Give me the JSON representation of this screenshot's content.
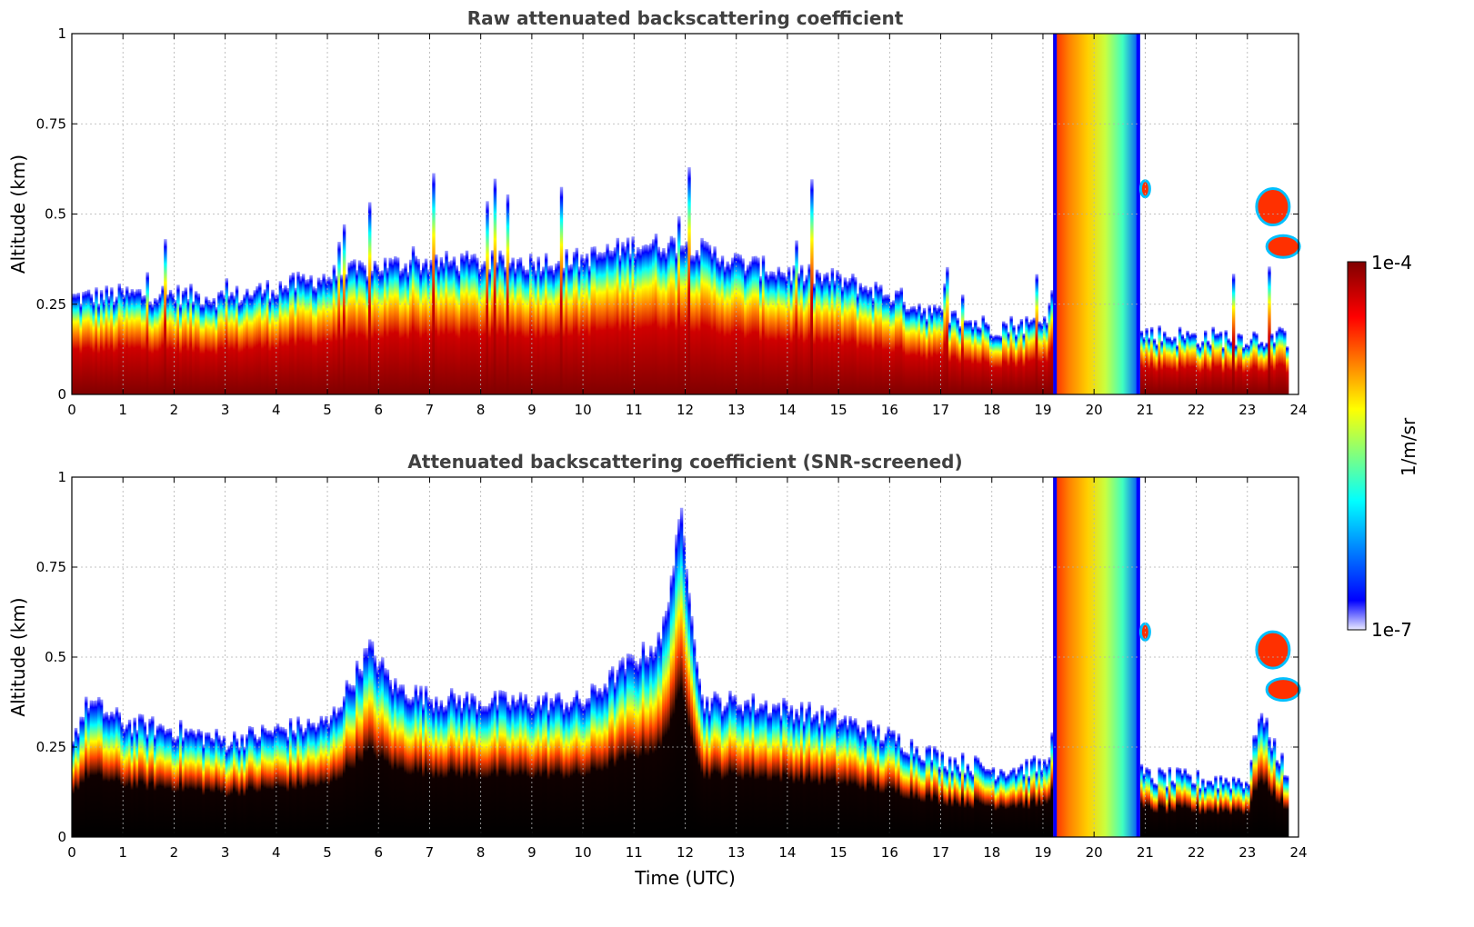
{
  "chart_data": [
    {
      "type": "heatmap",
      "title": "Raw attenuated backscattering coefficient",
      "xlabel": "",
      "ylabel": "Altitude (km)",
      "xlim": [
        0,
        24
      ],
      "ylim": [
        0,
        1
      ],
      "x_ticks": [
        "0",
        "1",
        "2",
        "3",
        "4",
        "5",
        "6",
        "7",
        "8",
        "9",
        "10",
        "11",
        "12",
        "13",
        "14",
        "15",
        "16",
        "17",
        "18",
        "19",
        "20",
        "21",
        "22",
        "23",
        "24"
      ],
      "y_ticks": [
        "0",
        "0.25",
        "0.5",
        "0.75",
        "1"
      ],
      "grid": true,
      "screened": false,
      "boundary_layer_top_km": [
        {
          "t": 0,
          "h": 0.27
        },
        {
          "t": 1,
          "h": 0.28
        },
        {
          "t": 2,
          "h": 0.28
        },
        {
          "t": 3,
          "h": 0.27
        },
        {
          "t": 4,
          "h": 0.3
        },
        {
          "t": 5,
          "h": 0.33
        },
        {
          "t": 6,
          "h": 0.36
        },
        {
          "t": 7,
          "h": 0.37
        },
        {
          "t": 8,
          "h": 0.37
        },
        {
          "t": 9,
          "h": 0.37
        },
        {
          "t": 10,
          "h": 0.38
        },
        {
          "t": 11,
          "h": 0.42
        },
        {
          "t": 12,
          "h": 0.42
        },
        {
          "t": 13,
          "h": 0.37
        },
        {
          "t": 14,
          "h": 0.34
        },
        {
          "t": 15,
          "h": 0.32
        },
        {
          "t": 16,
          "h": 0.28
        },
        {
          "t": 17,
          "h": 0.22
        },
        {
          "t": 18,
          "h": 0.19
        },
        {
          "t": 19,
          "h": 0.2
        },
        {
          "t": 19.2,
          "h": 0.3
        },
        {
          "t": 21,
          "h": 0.17
        },
        {
          "t": 22,
          "h": 0.16
        },
        {
          "t": 23,
          "h": 0.16
        },
        {
          "t": 23.8,
          "h": 0.16
        }
      ],
      "cloud_band": {
        "t_start": 19.2,
        "t_end": 20.9,
        "h_top_km": 1.0
      },
      "elevated_layers": [
        {
          "t": 23.5,
          "h_km": 0.52
        },
        {
          "t": 23.7,
          "h_km": 0.41
        },
        {
          "t": 21.0,
          "h_km": 0.57
        }
      ]
    },
    {
      "type": "heatmap",
      "title": "Attenuated backscattering coefficient (SNR-screened)",
      "xlabel": "Time (UTC)",
      "ylabel": "Altitude (km)",
      "xlim": [
        0,
        24
      ],
      "ylim": [
        0,
        1
      ],
      "x_ticks": [
        "0",
        "1",
        "2",
        "3",
        "4",
        "5",
        "6",
        "7",
        "8",
        "9",
        "10",
        "11",
        "12",
        "13",
        "14",
        "15",
        "16",
        "17",
        "18",
        "19",
        "20",
        "21",
        "22",
        "23",
        "24"
      ],
      "y_ticks": [
        "0",
        "0.25",
        "0.5",
        "0.75",
        "1"
      ],
      "grid": true,
      "screened": true,
      "boundary_layer_top_km": [
        {
          "t": 0,
          "h": 0.28
        },
        {
          "t": 0.3,
          "h": 0.38
        },
        {
          "t": 1,
          "h": 0.32
        },
        {
          "t": 2,
          "h": 0.3
        },
        {
          "t": 3,
          "h": 0.27
        },
        {
          "t": 4,
          "h": 0.3
        },
        {
          "t": 5,
          "h": 0.32
        },
        {
          "t": 5.8,
          "h": 0.53
        },
        {
          "t": 6.3,
          "h": 0.42
        },
        {
          "t": 7,
          "h": 0.39
        },
        {
          "t": 8,
          "h": 0.38
        },
        {
          "t": 9,
          "h": 0.38
        },
        {
          "t": 10,
          "h": 0.38
        },
        {
          "t": 10.8,
          "h": 0.48
        },
        {
          "t": 11.5,
          "h": 0.55
        },
        {
          "t": 11.9,
          "h": 0.9
        },
        {
          "t": 12.3,
          "h": 0.38
        },
        {
          "t": 13,
          "h": 0.38
        },
        {
          "t": 14,
          "h": 0.36
        },
        {
          "t": 15,
          "h": 0.33
        },
        {
          "t": 16,
          "h": 0.28
        },
        {
          "t": 17,
          "h": 0.22
        },
        {
          "t": 18,
          "h": 0.19
        },
        {
          "t": 19,
          "h": 0.2
        },
        {
          "t": 19.2,
          "h": 0.3
        },
        {
          "t": 21,
          "h": 0.17
        },
        {
          "t": 22,
          "h": 0.16
        },
        {
          "t": 23,
          "h": 0.16
        },
        {
          "t": 23.2,
          "h": 0.35
        },
        {
          "t": 23.8,
          "h": 0.16
        }
      ],
      "cloud_band": {
        "t_start": 19.2,
        "t_end": 20.9,
        "h_top_km": 1.0
      },
      "elevated_layers": [
        {
          "t": 23.5,
          "h_km": 0.52
        },
        {
          "t": 23.7,
          "h_km": 0.41
        },
        {
          "t": 21.0,
          "h_km": 0.57
        }
      ]
    }
  ],
  "colorbar": {
    "max_label": "1e-4",
    "min_label": "1e-7",
    "unit_label": "1/m/sr",
    "colors": [
      "#eaeaff",
      "#0000ff",
      "#00ffff",
      "#ffff00",
      "#ff0000",
      "#800000"
    ]
  }
}
